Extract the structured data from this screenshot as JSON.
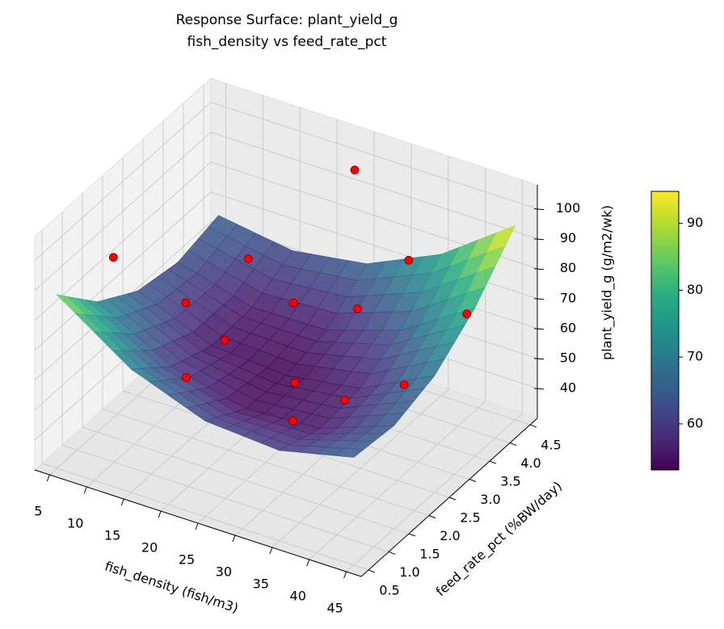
{
  "chart_data": {
    "type": "surface3d",
    "title": "Response Surface: plant_yield_g",
    "subtitle": "fish_density vs feed_rate_pct",
    "xlabel": "fish_density (fish/m3)",
    "ylabel": "feed_rate_pct (%BW/day)",
    "zlabel": "plant_yield_g (g/m2/wk)",
    "xlim": [
      3,
      47
    ],
    "xticks": [
      5,
      10,
      15,
      20,
      25,
      30,
      35,
      40,
      45
    ],
    "ylim": [
      0.32,
      4.68
    ],
    "yticks": [
      0.5,
      {
        "value": 1,
        "label": "1.0"
      },
      1.5,
      {
        "value": 2,
        "label": "2.0"
      },
      2.5,
      {
        "value": 3,
        "label": "3.0"
      },
      3.5,
      {
        "value": 4,
        "label": "4.0"
      },
      4.5
    ],
    "zlim": [
      30,
      108
    ],
    "zticks": [
      40,
      50,
      60,
      70,
      80,
      90,
      100
    ],
    "colormap": "viridis",
    "clim": [
      53.1,
      94.8
    ],
    "cbar_ticks": [
      60,
      70,
      80,
      90
    ],
    "surface": {
      "x": [
        5,
        15,
        25,
        35,
        45
      ],
      "y": [
        0.5,
        1.5,
        2.5,
        3.5,
        4.5
      ],
      "z": [
        [
          88,
          71.25,
          62,
          60.25,
          66
        ],
        [
          73.5,
          60,
          54,
          55.5,
          64.5
        ],
        [
          65,
          54.75,
          53,
          56.75,
          69
        ],
        [
          62.5,
          55.5,
          56,
          64,
          79.5
        ],
        [
          66,
          62.25,
          66,
          77.25,
          95
        ]
      ]
    },
    "scatter": {
      "color": "#ff0000",
      "x": [
        5,
        15,
        20,
        18,
        20,
        26,
        30,
        33,
        40,
        33,
        25,
        35,
        42,
        45
      ],
      "y": [
        1.9,
        1.85,
        0.95,
        2.85,
        1.9,
        2.5,
        1.8,
        1.2,
        1.2,
        2.8,
        4.2,
        3.7,
        2.3,
        3.3
      ],
      "z": [
        83.5,
        77,
        67,
        82,
        68,
        78,
        63,
        60,
        72.6,
        78,
        101,
        85,
        66,
        80
      ]
    }
  }
}
